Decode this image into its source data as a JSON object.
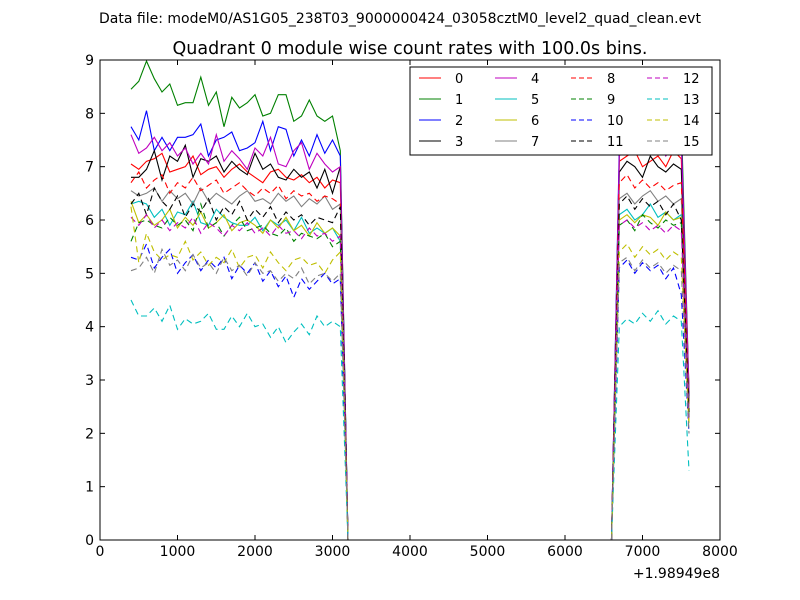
{
  "figure": {
    "suptitle": "Data file: modeM0/AS1G05_238T03_9000000424_03058cztM0_level2_quad_clean.evt",
    "title": "Quadrant 0 module wise count rates with 100.0s bins.",
    "x_offset_label": "+1.98949e8"
  },
  "chart_data": {
    "type": "line",
    "title": "Quadrant 0 module wise count rates with 100.0s bins.",
    "xlabel": "",
    "ylabel": "",
    "xlim": [
      0,
      8000
    ],
    "ylim": [
      0,
      9
    ],
    "x_offset": 198949000,
    "xticks": [
      0,
      1000,
      2000,
      3000,
      4000,
      5000,
      6000,
      7000,
      8000
    ],
    "yticks": [
      0,
      1,
      2,
      3,
      4,
      5,
      6,
      7,
      8,
      9
    ],
    "grid": false,
    "legend": {
      "position": "top-right",
      "columns": 4
    },
    "segments": [
      {
        "x_start": 400,
        "x_end": 3100,
        "step": 100
      },
      {
        "x_start": 6700,
        "x_end": 7600,
        "step": 100
      }
    ],
    "gap": {
      "x": [
        3200,
        3300,
        6500,
        6600
      ],
      "y": [
        0,
        0,
        0,
        0
      ]
    },
    "series": [
      {
        "name": "0",
        "color": "#ff0000",
        "dash": "solid",
        "seg1": [
          7.05,
          6.95,
          7.1,
          7.15,
          7.25,
          6.9,
          6.95,
          7.0,
          7.2,
          6.85,
          6.95,
          7.0,
          6.8,
          6.95,
          7.05,
          6.9,
          6.8,
          6.7,
          6.9,
          6.95,
          6.8,
          6.75,
          6.85,
          6.7,
          6.8,
          6.6,
          6.75,
          6.7
        ],
        "seg2": [
          7.1,
          7.2,
          7.3,
          7.0,
          7.1,
          7.2,
          7.0,
          7.3,
          7.15,
          2.6
        ]
      },
      {
        "name": "1",
        "color": "#008000",
        "dash": "solid",
        "seg1": [
          8.45,
          8.6,
          8.98,
          8.65,
          8.4,
          8.55,
          8.15,
          8.2,
          8.2,
          8.68,
          8.15,
          8.4,
          7.75,
          8.3,
          8.1,
          8.2,
          8.35,
          7.95,
          8.0,
          8.35,
          8.35,
          7.85,
          7.95,
          8.25,
          7.95,
          7.85,
          7.95,
          7.3
        ],
        "seg2": [
          7.2,
          7.8,
          8.0,
          8.1,
          8.3,
          7.9,
          8.2,
          8.0,
          7.9,
          2.8
        ]
      },
      {
        "name": "2",
        "color": "#0000ff",
        "dash": "solid",
        "seg1": [
          7.75,
          7.5,
          8.05,
          7.3,
          7.55,
          7.3,
          7.55,
          7.55,
          7.6,
          7.8,
          7.2,
          7.5,
          7.55,
          7.65,
          7.3,
          7.35,
          7.45,
          7.85,
          7.3,
          7.75,
          7.7,
          7.2,
          7.5,
          7.2,
          7.6,
          7.25,
          7.5,
          7.2
        ],
        "seg2": [
          7.4,
          7.55,
          7.6,
          7.5,
          7.7,
          7.45,
          7.6,
          7.55,
          7.6,
          2.7
        ]
      },
      {
        "name": "3",
        "color": "#000000",
        "dash": "solid",
        "seg1": [
          6.8,
          6.8,
          6.95,
          7.3,
          6.75,
          7.2,
          7.1,
          7.4,
          6.8,
          7.15,
          7.1,
          7.2,
          6.9,
          7.1,
          6.95,
          6.85,
          7.25,
          6.95,
          7.05,
          6.8,
          6.75,
          6.95,
          6.8,
          6.9,
          6.6,
          6.95,
          6.5,
          7.0
        ],
        "seg2": [
          6.9,
          7.1,
          7.0,
          6.8,
          7.2,
          7.0,
          6.9,
          7.05,
          6.95,
          2.6
        ]
      },
      {
        "name": "4",
        "color": "#bf00bf",
        "dash": "solid",
        "seg1": [
          7.6,
          7.25,
          7.35,
          7.55,
          7.3,
          7.45,
          7.2,
          7.35,
          7.05,
          7.25,
          7.05,
          7.6,
          7.1,
          7.3,
          7.15,
          6.95,
          7.35,
          7.2,
          7.55,
          7.05,
          7.0,
          7.3,
          7.45,
          6.95,
          7.25,
          7.05,
          6.9,
          7.0
        ],
        "seg2": [
          7.2,
          7.4,
          7.35,
          7.6,
          7.3,
          7.5,
          7.2,
          7.4,
          7.45,
          2.8
        ]
      },
      {
        "name": "5",
        "color": "#00bfbf",
        "dash": "solid",
        "seg1": [
          6.3,
          6.35,
          6.3,
          6.05,
          6.2,
          5.9,
          6.15,
          6.1,
          6.35,
          5.95,
          5.9,
          6.2,
          6.05,
          5.95,
          5.9,
          5.9,
          6.05,
          5.8,
          6.0,
          5.9,
          6.0,
          5.8,
          6.05,
          5.75,
          5.85,
          5.75,
          5.85,
          5.6
        ],
        "seg2": [
          6.1,
          6.2,
          6.0,
          6.1,
          6.3,
          6.05,
          6.15,
          6.0,
          6.1,
          2.3
        ]
      },
      {
        "name": "6",
        "color": "#bfbf00",
        "dash": "solid",
        "seg1": [
          6.35,
          5.95,
          6.1,
          5.9,
          6.0,
          6.2,
          5.85,
          6.05,
          5.9,
          6.15,
          5.85,
          5.95,
          6.1,
          5.8,
          5.95,
          6.0,
          5.9,
          5.75,
          6.0,
          5.85,
          6.05,
          5.8,
          5.9,
          5.7,
          5.95,
          5.75,
          5.85,
          5.7
        ],
        "seg2": [
          6.0,
          6.1,
          5.95,
          6.1,
          6.05,
          5.9,
          6.15,
          6.0,
          6.05,
          2.2
        ]
      },
      {
        "name": "7",
        "color": "#808080",
        "dash": "solid",
        "seg1": [
          6.55,
          6.45,
          6.5,
          6.6,
          6.35,
          6.55,
          6.4,
          6.5,
          6.3,
          6.6,
          6.35,
          6.5,
          6.4,
          6.3,
          6.45,
          6.55,
          6.35,
          6.4,
          6.3,
          6.5,
          6.35,
          6.45,
          6.25,
          6.4,
          6.3,
          6.45,
          6.2,
          6.3
        ],
        "seg2": [
          6.4,
          6.5,
          6.3,
          6.45,
          6.55,
          6.35,
          6.45,
          6.3,
          6.4,
          2.5
        ]
      },
      {
        "name": "8",
        "color": "#ff0000",
        "dash": "dashed",
        "seg1": [
          6.7,
          6.9,
          6.6,
          6.75,
          6.85,
          6.5,
          6.7,
          6.6,
          6.8,
          6.55,
          6.65,
          6.75,
          6.5,
          6.6,
          6.7,
          6.55,
          6.45,
          6.6,
          6.5,
          6.65,
          6.4,
          6.55,
          6.45,
          6.5,
          6.35,
          6.45,
          6.4,
          6.3
        ],
        "seg2": [
          6.7,
          6.85,
          6.6,
          6.75,
          6.6,
          6.7,
          6.55,
          6.65,
          6.7,
          2.4
        ]
      },
      {
        "name": "9",
        "color": "#008000",
        "dash": "dashed",
        "seg1": [
          5.6,
          5.95,
          6.0,
          5.9,
          5.85,
          6.05,
          5.9,
          6.0,
          5.8,
          6.3,
          5.85,
          5.95,
          5.7,
          5.9,
          6.05,
          5.8,
          5.85,
          5.9,
          5.75,
          5.7,
          5.85,
          5.6,
          5.75,
          5.7,
          5.65,
          5.75,
          5.5,
          5.6
        ],
        "seg2": [
          5.9,
          6.0,
          5.8,
          6.1,
          5.95,
          5.85,
          6.0,
          5.9,
          5.95,
          2.3
        ]
      },
      {
        "name": "10",
        "color": "#0000ff",
        "dash": "dashed",
        "seg1": [
          5.3,
          5.25,
          5.55,
          5.1,
          5.3,
          5.45,
          5.0,
          5.2,
          5.35,
          5.05,
          5.25,
          5.1,
          5.3,
          4.9,
          5.15,
          5.0,
          5.2,
          4.85,
          5.05,
          4.75,
          4.95,
          4.55,
          4.9,
          4.7,
          4.85,
          5.0,
          4.8,
          4.9
        ],
        "seg2": [
          5.1,
          5.25,
          5.0,
          5.2,
          5.05,
          5.15,
          4.9,
          5.1,
          4.6,
          2.0
        ]
      },
      {
        "name": "11",
        "color": "#000000",
        "dash": "dashed",
        "seg1": [
          6.3,
          6.5,
          6.1,
          6.6,
          6.35,
          6.2,
          6.45,
          6.05,
          6.3,
          6.15,
          6.4,
          6.0,
          6.25,
          6.1,
          6.35,
          6.0,
          6.2,
          6.05,
          6.25,
          5.95,
          6.15,
          6.0,
          6.1,
          5.9,
          6.05,
          6.0,
          5.95,
          6.25
        ],
        "seg2": [
          6.3,
          6.45,
          6.2,
          6.4,
          6.25,
          6.35,
          6.1,
          6.3,
          6.0,
          2.4
        ]
      },
      {
        "name": "12",
        "color": "#bf00bf",
        "dash": "dashed",
        "seg1": [
          6.05,
          5.9,
          6.1,
          5.85,
          6.0,
          5.8,
          5.95,
          5.85,
          6.05,
          5.75,
          5.95,
          5.85,
          5.7,
          5.9,
          5.8,
          5.95,
          5.75,
          5.85,
          5.7,
          5.9,
          5.75,
          5.8,
          5.65,
          5.85,
          5.7,
          5.75,
          5.6,
          5.7
        ],
        "seg2": [
          5.9,
          6.0,
          5.85,
          5.95,
          5.8,
          5.9,
          5.75,
          5.9,
          5.8,
          2.2
        ]
      },
      {
        "name": "13",
        "color": "#00bfbf",
        "dash": "dashed",
        "seg1": [
          4.5,
          4.2,
          4.2,
          4.35,
          4.1,
          4.4,
          3.95,
          4.15,
          4.05,
          4.1,
          4.25,
          3.95,
          3.95,
          4.2,
          4.0,
          4.25,
          4.0,
          4.05,
          3.8,
          4.0,
          3.7,
          3.9,
          4.05,
          3.85,
          4.2,
          4.0,
          4.1,
          4.0
        ],
        "seg2": [
          4.0,
          4.15,
          4.05,
          4.25,
          4.1,
          4.3,
          4.05,
          4.2,
          4.1,
          1.3
        ]
      },
      {
        "name": "14",
        "color": "#bfbf00",
        "dash": "dashed",
        "seg1": [
          6.25,
          5.2,
          5.75,
          5.4,
          5.25,
          5.35,
          5.3,
          5.6,
          5.25,
          5.4,
          5.15,
          5.3,
          5.2,
          5.45,
          5.1,
          5.3,
          5.35,
          5.1,
          5.4,
          5.2,
          5.05,
          5.25,
          5.3,
          5.15,
          5.2,
          5.0,
          5.25,
          5.4
        ],
        "seg2": [
          5.4,
          5.55,
          5.3,
          5.5,
          5.35,
          5.45,
          5.25,
          5.4,
          5.3,
          2.1
        ]
      },
      {
        "name": "15",
        "color": "#808080",
        "dash": "dashed",
        "seg1": [
          5.05,
          5.1,
          5.3,
          5.0,
          5.45,
          5.15,
          5.25,
          5.05,
          5.35,
          5.1,
          5.2,
          5.0,
          5.3,
          5.05,
          5.15,
          4.95,
          5.2,
          5.0,
          5.05,
          4.85,
          5.0,
          4.9,
          5.1,
          4.8,
          4.95,
          5.0,
          4.85,
          5.0
        ],
        "seg2": [
          5.2,
          5.3,
          5.05,
          5.25,
          5.1,
          5.2,
          5.0,
          5.15,
          5.05,
          2.0
        ]
      }
    ]
  }
}
